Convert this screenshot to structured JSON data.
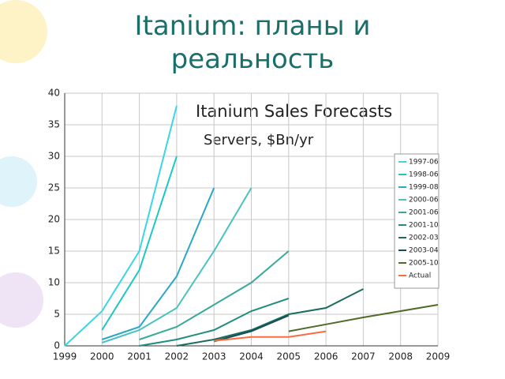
{
  "slide": {
    "title": "Itanium: планы и реальность"
  },
  "chart_data": {
    "type": "line",
    "title": "Itanium Sales Forecasts",
    "subtitle": "Servers, $Bn/yr",
    "xlim": [
      1999,
      2009
    ],
    "xticks": [
      1999,
      2000,
      2001,
      2002,
      2003,
      2004,
      2005,
      2006,
      2007,
      2008,
      2009
    ],
    "ylim": [
      0,
      40
    ],
    "yticks": [
      0,
      5,
      10,
      15,
      20,
      25,
      30,
      35,
      40
    ],
    "grid": true,
    "legend": "right",
    "series": [
      {
        "name": "1997-06",
        "color": "#3ad6e6",
        "x": [
          1999,
          2000,
          2001,
          2002
        ],
        "values": [
          0,
          5.5,
          15,
          38
        ]
      },
      {
        "name": "1998-06",
        "color": "#1cc8c2",
        "x": [
          2000,
          2001,
          2002
        ],
        "values": [
          2.5,
          12,
          30
        ]
      },
      {
        "name": "1999-08",
        "color": "#2aa8c8",
        "x": [
          2000,
          2001,
          2002,
          2003
        ],
        "values": [
          1,
          3,
          11,
          25
        ]
      },
      {
        "name": "2000-06",
        "color": "#48c2c2",
        "x": [
          2000,
          2001,
          2002,
          2003,
          2004
        ],
        "values": [
          0.5,
          2.5,
          6,
          15,
          25
        ]
      },
      {
        "name": "2001-06",
        "color": "#3aa99a",
        "x": [
          2001,
          2002,
          2003,
          2004,
          2005
        ],
        "values": [
          1,
          3,
          6.5,
          10,
          15
        ]
      },
      {
        "name": "2001-10",
        "color": "#1f8d80",
        "x": [
          2001,
          2002,
          2003,
          2004,
          2005
        ],
        "values": [
          0,
          1,
          2.5,
          5.5,
          7.5
        ]
      },
      {
        "name": "2002-03",
        "color": "#1b6b5e",
        "x": [
          2002,
          2003,
          2004,
          2005,
          2006,
          2007
        ],
        "values": [
          0,
          1,
          2.5,
          5,
          6,
          9
        ]
      },
      {
        "name": "2003-04",
        "color": "#164e58",
        "x": [
          2003,
          2004,
          2005
        ],
        "values": [
          0.7,
          2.3,
          4.8
        ]
      },
      {
        "name": "2005-10",
        "color": "#4f6b2a",
        "x": [
          2005,
          2006,
          2007,
          2008,
          2009
        ],
        "values": [
          2.3,
          3.4,
          4.5,
          5.5,
          6.5
        ]
      },
      {
        "name": "Actual",
        "color": "#ff6a3d",
        "x": [
          2003,
          2004,
          2005,
          2006
        ],
        "values": [
          0.8,
          1.4,
          1.4,
          2.3
        ]
      }
    ]
  }
}
